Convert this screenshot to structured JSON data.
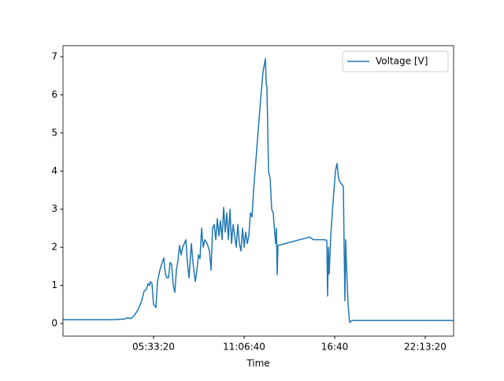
{
  "chart_data": {
    "type": "line",
    "x_label": "Time",
    "x": [
      0,
      10440,
      12180,
      13570,
      14270,
      14960,
      15650,
      16520,
      17390,
      17910,
      18430,
      18780,
      19130,
      19300,
      19650,
      20000,
      20520,
      20870,
      21390,
      21910,
      22260,
      22610,
      22960,
      23300,
      23650,
      24000,
      24350,
      24700,
      25040,
      25390,
      25740,
      26090,
      26430,
      26780,
      27130,
      27480,
      27830,
      28350,
      28700,
      29220,
      29570,
      29910,
      30260,
      30610,
      30960,
      31300,
      31830,
      32350,
      32700,
      33040,
      33390,
      33740,
      34090,
      34430,
      34780,
      35130,
      35480,
      35830,
      36170,
      36520,
      36870,
      37220,
      37570,
      37910,
      38260,
      38610,
      38960,
      39300,
      39650,
      40000,
      40350,
      40700,
      41040,
      41390,
      41740,
      42090,
      42610,
      43130,
      43650,
      44170,
      44700,
      44870,
      45040,
      45390,
      45740,
      46090,
      46430,
      46610,
      46960,
      47130,
      47300,
      47480,
      53910,
      54430,
      55300,
      57740,
      58260,
      58430,
      58610,
      58780,
      59130,
      59650,
      60170,
      60520,
      60870,
      61220,
      61910,
      62090,
      62260,
      62430,
      62610,
      62960,
      63300,
      63830,
      86260
    ],
    "series": [
      {
        "name": "Voltage [V]",
        "color": "#1f77b4",
        "values": [
          0.1,
          0.1,
          0.11,
          0.12,
          0.15,
          0.13,
          0.2,
          0.35,
          0.6,
          0.85,
          0.9,
          1.05,
          1.0,
          1.1,
          1.05,
          0.5,
          0.42,
          1.1,
          1.4,
          1.6,
          1.72,
          1.3,
          1.2,
          1.2,
          1.6,
          1.55,
          1.0,
          0.82,
          1.4,
          1.65,
          2.05,
          1.8,
          2.0,
          2.1,
          2.2,
          1.6,
          1.2,
          2.1,
          1.6,
          1.1,
          1.4,
          1.8,
          1.7,
          2.5,
          2.0,
          2.2,
          2.1,
          1.9,
          1.4,
          2.5,
          2.6,
          2.2,
          2.75,
          2.3,
          2.7,
          2.2,
          3.05,
          2.4,
          2.9,
          2.2,
          3.0,
          2.1,
          2.6,
          2.3,
          2.0,
          2.6,
          2.1,
          1.9,
          2.5,
          2.0,
          2.4,
          2.1,
          2.3,
          2.9,
          2.8,
          3.5,
          4.3,
          5.1,
          5.9,
          6.6,
          6.95,
          6.3,
          6.2,
          4.0,
          3.8,
          3.0,
          2.9,
          2.6,
          2.1,
          2.5,
          1.28,
          2.05,
          2.25,
          2.27,
          2.2,
          2.2,
          2.18,
          0.72,
          2.0,
          1.3,
          2.3,
          3.2,
          4.0,
          4.2,
          3.8,
          3.7,
          3.6,
          2.0,
          0.6,
          2.2,
          1.5,
          0.5,
          0.03,
          0.08,
          0.08
        ]
      }
    ],
    "xlim": [
      0,
      86260
    ],
    "ylim": [
      -0.33,
      7.29
    ],
    "xticks": [
      {
        "value": 20000,
        "label": "05:33:20"
      },
      {
        "value": 40000,
        "label": "11:06:40"
      },
      {
        "value": 60000,
        "label": "16:40"
      },
      {
        "value": 80000,
        "label": "22:13:20"
      }
    ],
    "yticks": [
      0,
      1,
      2,
      3,
      4,
      5,
      6,
      7
    ],
    "legend": "upper right"
  }
}
